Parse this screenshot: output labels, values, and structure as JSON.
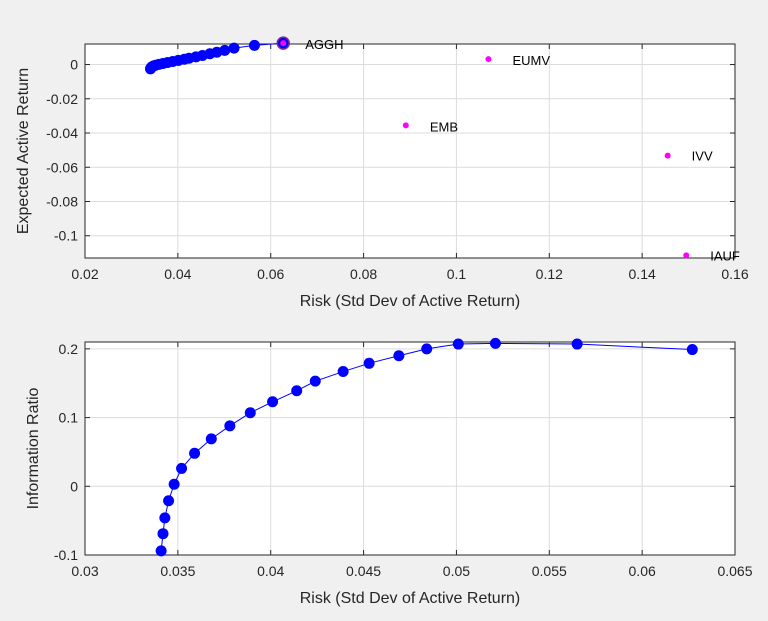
{
  "chart_data": [
    {
      "type": "scatter",
      "xlabel": "Risk (Std Dev of Active Return)",
      "ylabel": "Expected Active Return",
      "xlim": [
        0.02,
        0.16
      ],
      "ylim": [
        -0.113,
        0.012
      ],
      "xticks": [
        "0.02",
        "0.04",
        "0.06",
        "0.08",
        "0.1",
        "0.12",
        "0.14",
        "0.16"
      ],
      "yticks": [
        "0",
        "-0.02",
        "-0.04",
        "-0.06",
        "-0.08",
        "-0.1"
      ],
      "grid": true,
      "colors": {
        "frontier": "#0000ff",
        "assets": "#ff00ff",
        "highlight_edge": "#7e2f8e"
      },
      "series": [
        {
          "style": "line-markers",
          "x": [
            0.0341,
            0.0342,
            0.0343,
            0.0345,
            0.0348,
            0.0352,
            0.0359,
            0.0368,
            0.0378,
            0.0389,
            0.0401,
            0.0414,
            0.0424,
            0.0439,
            0.0453,
            0.0469,
            0.0484,
            0.0501,
            0.0521,
            0.0565,
            0.0627
          ],
          "y": [
            -0.0025,
            -0.0021,
            -0.0016,
            -0.0012,
            -0.0008,
            -0.0004,
            0.0001,
            0.0006,
            0.0012,
            0.0018,
            0.0024,
            0.0031,
            0.0037,
            0.0045,
            0.0053,
            0.0063,
            0.0072,
            0.0083,
            0.0096,
            0.0112,
            0.0125
          ]
        },
        {
          "style": "markers",
          "x": [
            0.0627,
            0.1069,
            0.0891,
            0.1455,
            0.1495
          ],
          "y": [
            0.0125,
            0.0032,
            -0.0355,
            -0.0532,
            -0.1115
          ],
          "labels": [
            "AGGH",
            "EUMV",
            "EMB",
            "IVV",
            "IAUF"
          ]
        }
      ]
    },
    {
      "type": "line",
      "xlabel": "Risk (Std Dev of Active Return)",
      "ylabel": "Information Ratio",
      "xlim": [
        0.03,
        0.065
      ],
      "ylim": [
        -0.1,
        0.21
      ],
      "xticks": [
        "0.03",
        "0.035",
        "0.04",
        "0.045",
        "0.05",
        "0.055",
        "0.06",
        "0.065"
      ],
      "yticks": [
        "0.2",
        "0.1",
        "0",
        "-0.1"
      ],
      "grid": true,
      "colors": {
        "frontier": "#0000ff"
      },
      "series": [
        {
          "style": "line-markers",
          "x": [
            0.0341,
            0.0342,
            0.0343,
            0.0345,
            0.0348,
            0.0352,
            0.0359,
            0.0368,
            0.0378,
            0.0389,
            0.0401,
            0.0414,
            0.0424,
            0.0439,
            0.0453,
            0.0469,
            0.0484,
            0.0501,
            0.0521,
            0.0565,
            0.0627
          ],
          "y": [
            -0.094,
            -0.069,
            -0.046,
            -0.021,
            0.003,
            0.026,
            0.048,
            0.069,
            0.088,
            0.107,
            0.123,
            0.139,
            0.153,
            0.167,
            0.179,
            0.19,
            0.2,
            0.207,
            0.208,
            0.207,
            0.199
          ]
        }
      ]
    }
  ]
}
